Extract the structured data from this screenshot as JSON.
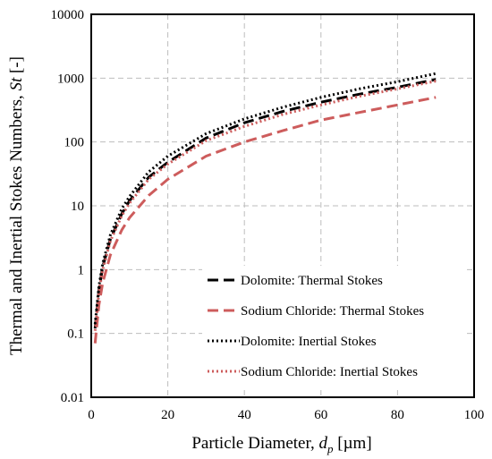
{
  "chart_data": {
    "type": "line",
    "x_axis": {
      "label": "Particle Diameter, ",
      "label_italic": "d",
      "label_sub": "p",
      "label_unit": " [µm]",
      "range": [
        0,
        100
      ],
      "ticks": [
        "0",
        "20",
        "40",
        "60",
        "80",
        "100"
      ]
    },
    "y_axis": {
      "label": "Thermal and Inertial Stokes Numbers, ",
      "label_italic": "St",
      "label_unit": " [-]",
      "scale": "log",
      "range": [
        0.01,
        10000
      ],
      "ticks": [
        "0.01",
        "0.1",
        "1",
        "10",
        "100",
        "1000",
        "10000"
      ]
    },
    "grid": true,
    "legend_position": "bottom-right",
    "series": [
      {
        "name": "Dolomite: Thermal Stokes",
        "color": "#000000",
        "style": "dash",
        "x": [
          1,
          2,
          3,
          5,
          8,
          10,
          15,
          20,
          30,
          40,
          50,
          60,
          70,
          80,
          90
        ],
        "y": [
          0.12,
          0.48,
          1.1,
          3.0,
          7.5,
          12,
          28,
          48,
          115,
          200,
          300,
          420,
          560,
          720,
          950
        ]
      },
      {
        "name": "Sodium Chloride: Thermal Stokes",
        "color": "#cd5c5c",
        "style": "dash",
        "x": [
          1,
          2,
          3,
          5,
          8,
          10,
          15,
          20,
          30,
          40,
          50,
          60,
          70,
          80,
          90
        ],
        "y": [
          0.07,
          0.28,
          0.62,
          1.7,
          4.2,
          6.5,
          14.5,
          26,
          60,
          100,
          150,
          220,
          290,
          380,
          500
        ]
      },
      {
        "name": "Dolomite: Inertial Stokes",
        "color": "#000000",
        "style": "dot",
        "x": [
          1,
          2,
          3,
          5,
          8,
          10,
          15,
          20,
          30,
          40,
          50,
          60,
          70,
          80,
          90
        ],
        "y": [
          0.14,
          0.55,
          1.25,
          3.5,
          9.0,
          14,
          34,
          60,
          135,
          230,
          350,
          500,
          680,
          880,
          1180
        ]
      },
      {
        "name": "Sodium Chloride: Inertial Stokes",
        "color": "#cd5c5c",
        "style": "dot",
        "x": [
          1,
          2,
          3,
          5,
          8,
          10,
          15,
          20,
          30,
          40,
          50,
          60,
          70,
          80,
          90
        ],
        "y": [
          0.11,
          0.44,
          1.0,
          2.8,
          7.0,
          11,
          26,
          45,
          105,
          175,
          270,
          380,
          520,
          680,
          900
        ]
      }
    ]
  }
}
